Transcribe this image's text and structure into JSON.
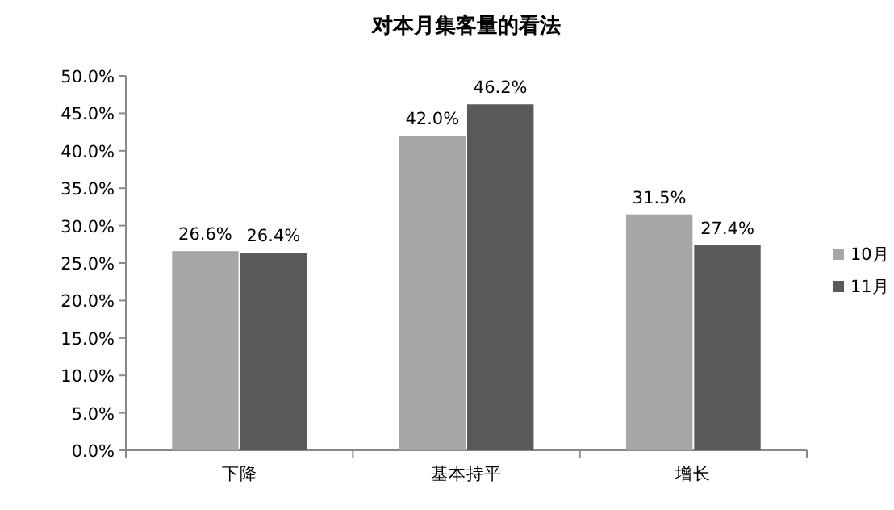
{
  "chart_data": {
    "type": "bar",
    "title": "对本月集客量的看法",
    "categories": [
      "下降",
      "基本持平",
      "增长"
    ],
    "series": [
      {
        "name": "10月",
        "color": "#a6a6a6",
        "values": [
          26.6,
          42.0,
          31.5
        ],
        "value_labels": [
          "26.6%",
          "42.0%",
          "31.5%"
        ]
      },
      {
        "name": "11月",
        "color": "#595959",
        "values": [
          26.4,
          46.2,
          27.4
        ],
        "value_labels": [
          "26.4%",
          "46.2%",
          "27.4%"
        ]
      }
    ],
    "ylim": [
      0,
      50
    ],
    "yticks": [
      {
        "value": 0,
        "label": "0.0%"
      },
      {
        "value": 5,
        "label": "5.0%"
      },
      {
        "value": 10,
        "label": "10.0%"
      },
      {
        "value": 15,
        "label": "15.0%"
      },
      {
        "value": 20,
        "label": "20.0%"
      },
      {
        "value": 25,
        "label": "25.0%"
      },
      {
        "value": 30,
        "label": "30.0%"
      },
      {
        "value": 35,
        "label": "35.0%"
      },
      {
        "value": 40,
        "label": "40.0%"
      },
      {
        "value": 45,
        "label": "45.0%"
      },
      {
        "value": 50,
        "label": "50.0%"
      }
    ],
    "legend": "right"
  }
}
